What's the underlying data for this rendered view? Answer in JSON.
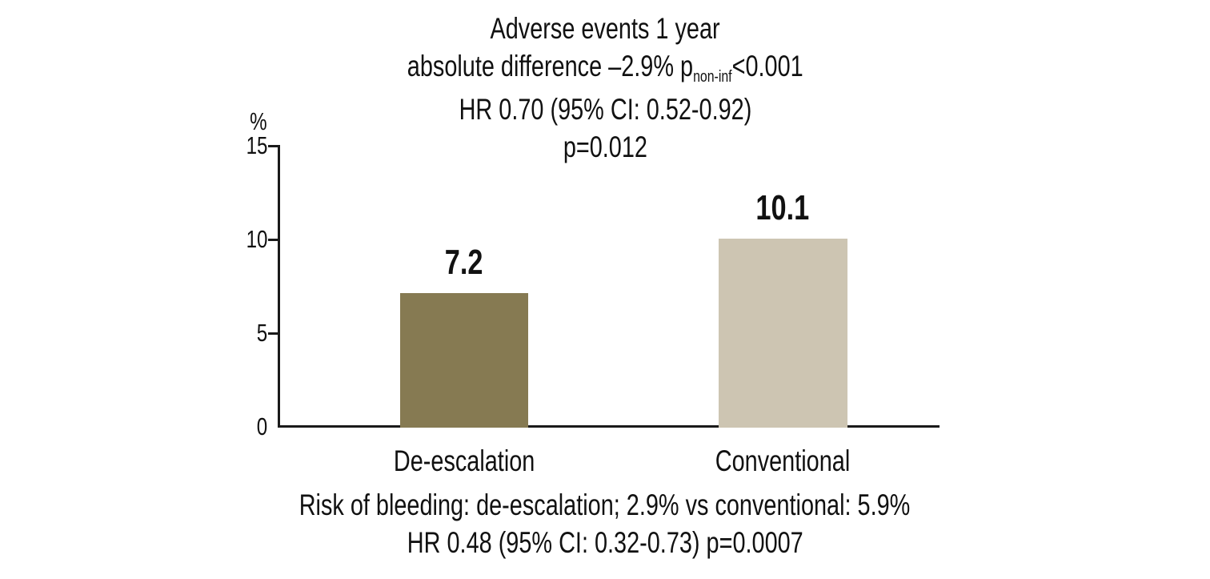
{
  "chart_data": {
    "type": "bar",
    "title": "Adverse events 1 year",
    "stats_line": {
      "prefix": "absolute difference –2.9% p",
      "subscript": "non-inf",
      "suffix": "<0.001"
    },
    "hr_line": "HR 0.70 (95% CI: 0.52-0.92)",
    "p_line": "p=0.012",
    "ylabel": "%",
    "ylim": [
      0,
      15
    ],
    "yticks": [
      "15",
      "10",
      "5",
      "0"
    ],
    "categories": [
      "De-escalation",
      "Conventional"
    ],
    "values": [
      7.2,
      10.1
    ],
    "bar_colors": [
      "#867a52",
      "#cdc5b2"
    ],
    "axis_color": "#1a1a1a",
    "grid": false,
    "legend": "none",
    "footnote_line1": "Risk of bleeding: de-escalation; 2.9% vs conventional: 5.9%",
    "footnote_line2": "HR 0.48 (95% CI: 0.32-0.73) p=0.0007"
  }
}
